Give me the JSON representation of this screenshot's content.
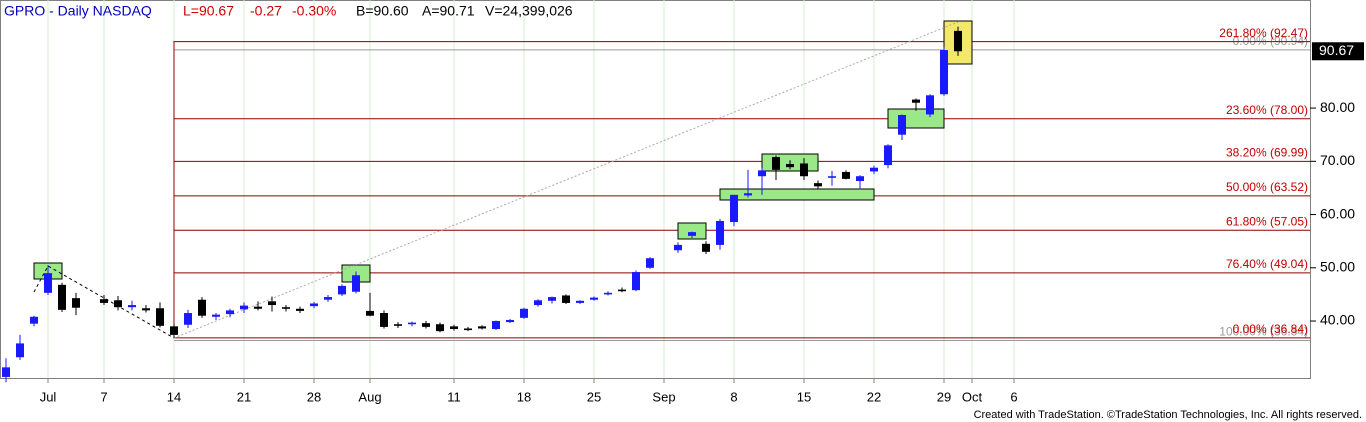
{
  "chart_data": {
    "type": "candlestick",
    "title": "GPRO - Daily  NASDAQ",
    "quote": {
      "last": "L=90.67",
      "change": "-0.27",
      "change_pct": "-0.30%",
      "bid": "B=90.60",
      "ask": "A=90.71",
      "volume": "V=24,399,026"
    },
    "last_price": 90.67,
    "footer": "Created with TradeStation. ©TradeStation Technologies, Inc. All rights reserved.",
    "up_color": "#1a1aff",
    "down_color": "#000000",
    "grid": true,
    "categories": [
      null,
      null,
      null,
      "Jul",
      null,
      null,
      null,
      "7",
      null,
      null,
      null,
      null,
      "14",
      null,
      null,
      null,
      null,
      "21",
      null,
      null,
      null,
      null,
      "28",
      null,
      null,
      null,
      "Aug",
      null,
      null,
      null,
      null,
      null,
      "11",
      null,
      null,
      null,
      null,
      "18",
      null,
      null,
      null,
      null,
      "25",
      null,
      null,
      null,
      null,
      "Sep",
      null,
      null,
      null,
      null,
      "8",
      null,
      null,
      null,
      null,
      "15",
      null,
      null,
      null,
      null,
      "22",
      null,
      null,
      null,
      null,
      "29",
      null,
      "Oct",
      null,
      null,
      "6",
      null,
      null,
      null,
      null,
      null,
      null,
      null,
      null,
      null,
      null,
      null,
      null,
      null,
      null,
      null,
      null,
      null,
      null,
      null,
      null
    ],
    "open": [
      29.5,
      33.2,
      39.5,
      45.3,
      46.8,
      44.3,
      null,
      44.1,
      43.9,
      42.6,
      42.4,
      42.4,
      39,
      39.3,
      44,
      40.8,
      41.3,
      42.2,
      42.7,
      43.7,
      42.6,
      42.3,
      42.8,
      44,
      45,
      45.5,
      41.9,
      41.5,
      39.4,
      39.4,
      39.6,
      39.4,
      39,
      38.6,
      39,
      38.5,
      39.8,
      40.6,
      43,
      43.8,
      44.8,
      43.4,
      44,
      45,
      45.9,
      45.8,
      50,
      null,
      53.3,
      56,
      54.5,
      54.3,
      58.6,
      63.6,
      67.2,
      70.8,
      69.5,
      69.6,
      65.9,
      66.9,
      68,
      66.3,
      68.1,
      69.3,
      75,
      81.6,
      78.8,
      82.6,
      94.5,
      null,
      null,
      null,
      null,
      null,
      null,
      null,
      null,
      null,
      null,
      null,
      null,
      null,
      null,
      null,
      null,
      null,
      null,
      null,
      null,
      null,
      null,
      null,
      null
    ],
    "high": [
      33,
      37.4,
      41,
      50.5,
      47.2,
      45.3,
      null,
      44.9,
      44.7,
      43.8,
      43,
      43.5,
      39.5,
      42.1,
      44.5,
      41.5,
      42.3,
      43.5,
      43.7,
      44.6,
      43,
      42.7,
      43.6,
      44.9,
      46.9,
      49.3,
      45.3,
      42,
      39.8,
      39.9,
      40,
      39.7,
      39.3,
      38.9,
      39.2,
      40.1,
      40.4,
      42.5,
      44.1,
      44.6,
      45,
      43.9,
      44.6,
      45.6,
      46.3,
      49.5,
      52,
      null,
      54.8,
      56.8,
      55,
      59.2,
      63.7,
      68.4,
      68.8,
      71.1,
      70.2,
      70.6,
      66.4,
      68.2,
      68.3,
      67.4,
      69.2,
      73.2,
      78.8,
      81.8,
      82.6,
      91.4,
      95.3,
      null,
      null,
      null,
      null,
      null,
      null,
      null,
      null,
      null,
      null,
      null,
      null,
      null,
      null,
      null,
      null,
      null,
      null,
      null,
      null,
      null,
      null,
      null,
      null
    ],
    "low": [
      28.5,
      32.7,
      39,
      44.9,
      41.7,
      41.1,
      null,
      43,
      42,
      42,
      41.6,
      38.8,
      36.84,
      38.7,
      40.6,
      40.2,
      40.7,
      41.5,
      42,
      41.8,
      41.8,
      41.5,
      42.4,
      43.6,
      44.7,
      45.2,
      40.9,
      38.6,
      38.7,
      39,
      38.6,
      37.9,
      38.2,
      38.1,
      38.4,
      38.3,
      39.6,
      40.4,
      42.7,
      43.3,
      43.2,
      43.2,
      43.8,
      44.8,
      45.4,
      45.6,
      49.8,
      null,
      52.8,
      55.6,
      52.6,
      53.4,
      57.8,
      63.2,
      63.7,
      66.5,
      68.5,
      66.5,
      64.7,
      65.4,
      66.6,
      64.7,
      67.6,
      68.7,
      74,
      79.5,
      78.3,
      82.3,
      89.8,
      null,
      null,
      null,
      null,
      null,
      null,
      null,
      null,
      null,
      null,
      null,
      null,
      null,
      null,
      null,
      null,
      null,
      null,
      null,
      null,
      null,
      null,
      null,
      null
    ],
    "close": [
      31.3,
      35.8,
      40.8,
      49,
      42.1,
      42.5,
      null,
      43.4,
      42.6,
      43,
      42,
      39.1,
      37.4,
      41.5,
      41,
      41.2,
      42,
      42.9,
      42.3,
      43,
      42.3,
      41.9,
      43.3,
      44.5,
      46.6,
      48.6,
      41,
      38.9,
      39.1,
      39.7,
      38.9,
      38.1,
      38.5,
      38.3,
      38.6,
      40,
      40.2,
      42.3,
      43.9,
      44.5,
      43.4,
      43.8,
      44.4,
      45.3,
      45.6,
      49.2,
      51.8,
      null,
      54.3,
      56.7,
      53,
      58.8,
      63.7,
      64,
      68.3,
      68.4,
      68.9,
      67.2,
      65.3,
      67.2,
      66.7,
      67.2,
      68.8,
      73,
      78.7,
      81,
      82.4,
      90.9,
      90.67,
      null,
      null,
      null,
      null,
      null,
      null,
      null,
      null,
      null,
      null,
      null,
      null,
      null,
      null,
      null,
      null,
      null,
      null,
      null,
      null,
      null,
      null,
      null,
      null
    ],
    "ylim": [
      29.3,
      100.3
    ],
    "yticks": [
      {
        "value": 40,
        "label": "40.00"
      },
      {
        "value": 50,
        "label": "50.00"
      },
      {
        "value": 60,
        "label": "60.00"
      },
      {
        "value": 70,
        "label": "70.00"
      },
      {
        "value": 80,
        "label": "80.00"
      }
    ],
    "fib_levels": [
      {
        "value": 90.94,
        "label": "0.00% (90.94)",
        "color": "#9a9a9a"
      },
      {
        "value": 36.34,
        "label": "100.00% (36.34)",
        "color": "#9a9a9a"
      },
      {
        "value": 92.47,
        "label": "261.80% (92.47)",
        "color": "#8b0000"
      },
      {
        "value": 78.0,
        "label": "23.60% (78.00)",
        "color": "#8b0000"
      },
      {
        "value": 69.99,
        "label": "38.20% (69.99)",
        "color": "#8b0000"
      },
      {
        "value": 63.52,
        "label": "50.00% (63.52)",
        "color": "#8b0000"
      },
      {
        "value": 57.05,
        "label": "61.80% (57.05)",
        "color": "#8b0000"
      },
      {
        "value": 49.04,
        "label": "76.40% (49.04)",
        "color": "#8b0000"
      },
      {
        "value": 36.84,
        "label": "0.00% (36.84)",
        "color": "#8b0000"
      }
    ]
  }
}
